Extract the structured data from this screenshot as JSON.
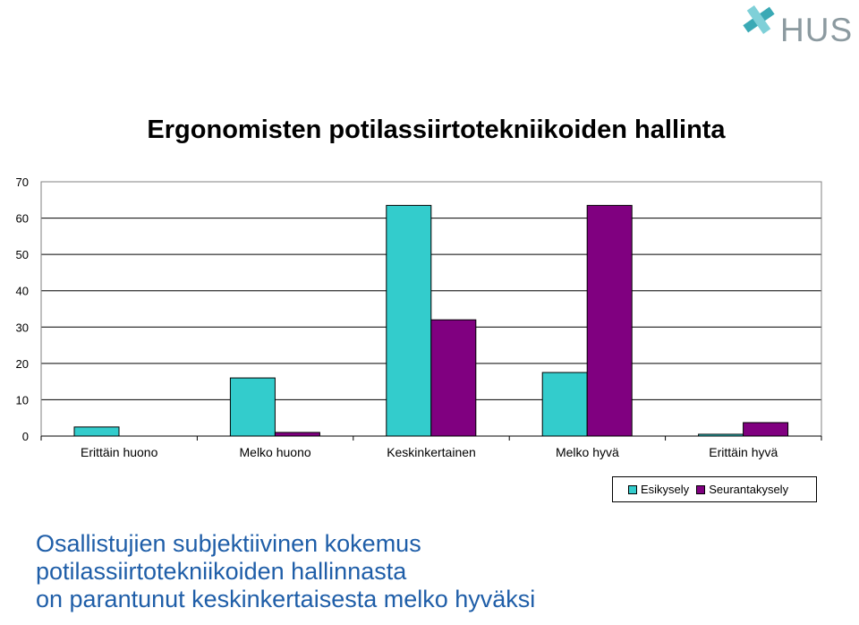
{
  "logo": {
    "text": "HUS",
    "icon": "hus-cross-logo-icon"
  },
  "chart_data": {
    "type": "bar",
    "title": "Ergonomisten potilassiirtotekniikoiden hallinta",
    "xlabel": "",
    "ylabel": "",
    "categories": [
      "Erittäin huono",
      "Melko huono",
      "Keskinkertainen",
      "Melko hyvä",
      "Erittäin hyvä"
    ],
    "series": [
      {
        "name": "Esikysely",
        "color": "#33cccc",
        "values": [
          2.5,
          16,
          63.5,
          17.5,
          0.5
        ]
      },
      {
        "name": "Seurantakysely",
        "color": "#800080",
        "values": [
          0,
          1,
          32,
          63.5,
          3.7
        ]
      }
    ],
    "ylim": [
      0,
      70
    ],
    "yticks": [
      "0",
      "10",
      "20",
      "30",
      "40",
      "50",
      "60",
      "70"
    ],
    "grid": true,
    "legend": "bottom-right"
  },
  "caption": {
    "lines": [
      "Osallistujien subjektiivinen kokemus",
      "potilassiirtotekniikoiden hallinnasta",
      "on parantunut keskinkertaisesta melko hyväksi"
    ]
  }
}
